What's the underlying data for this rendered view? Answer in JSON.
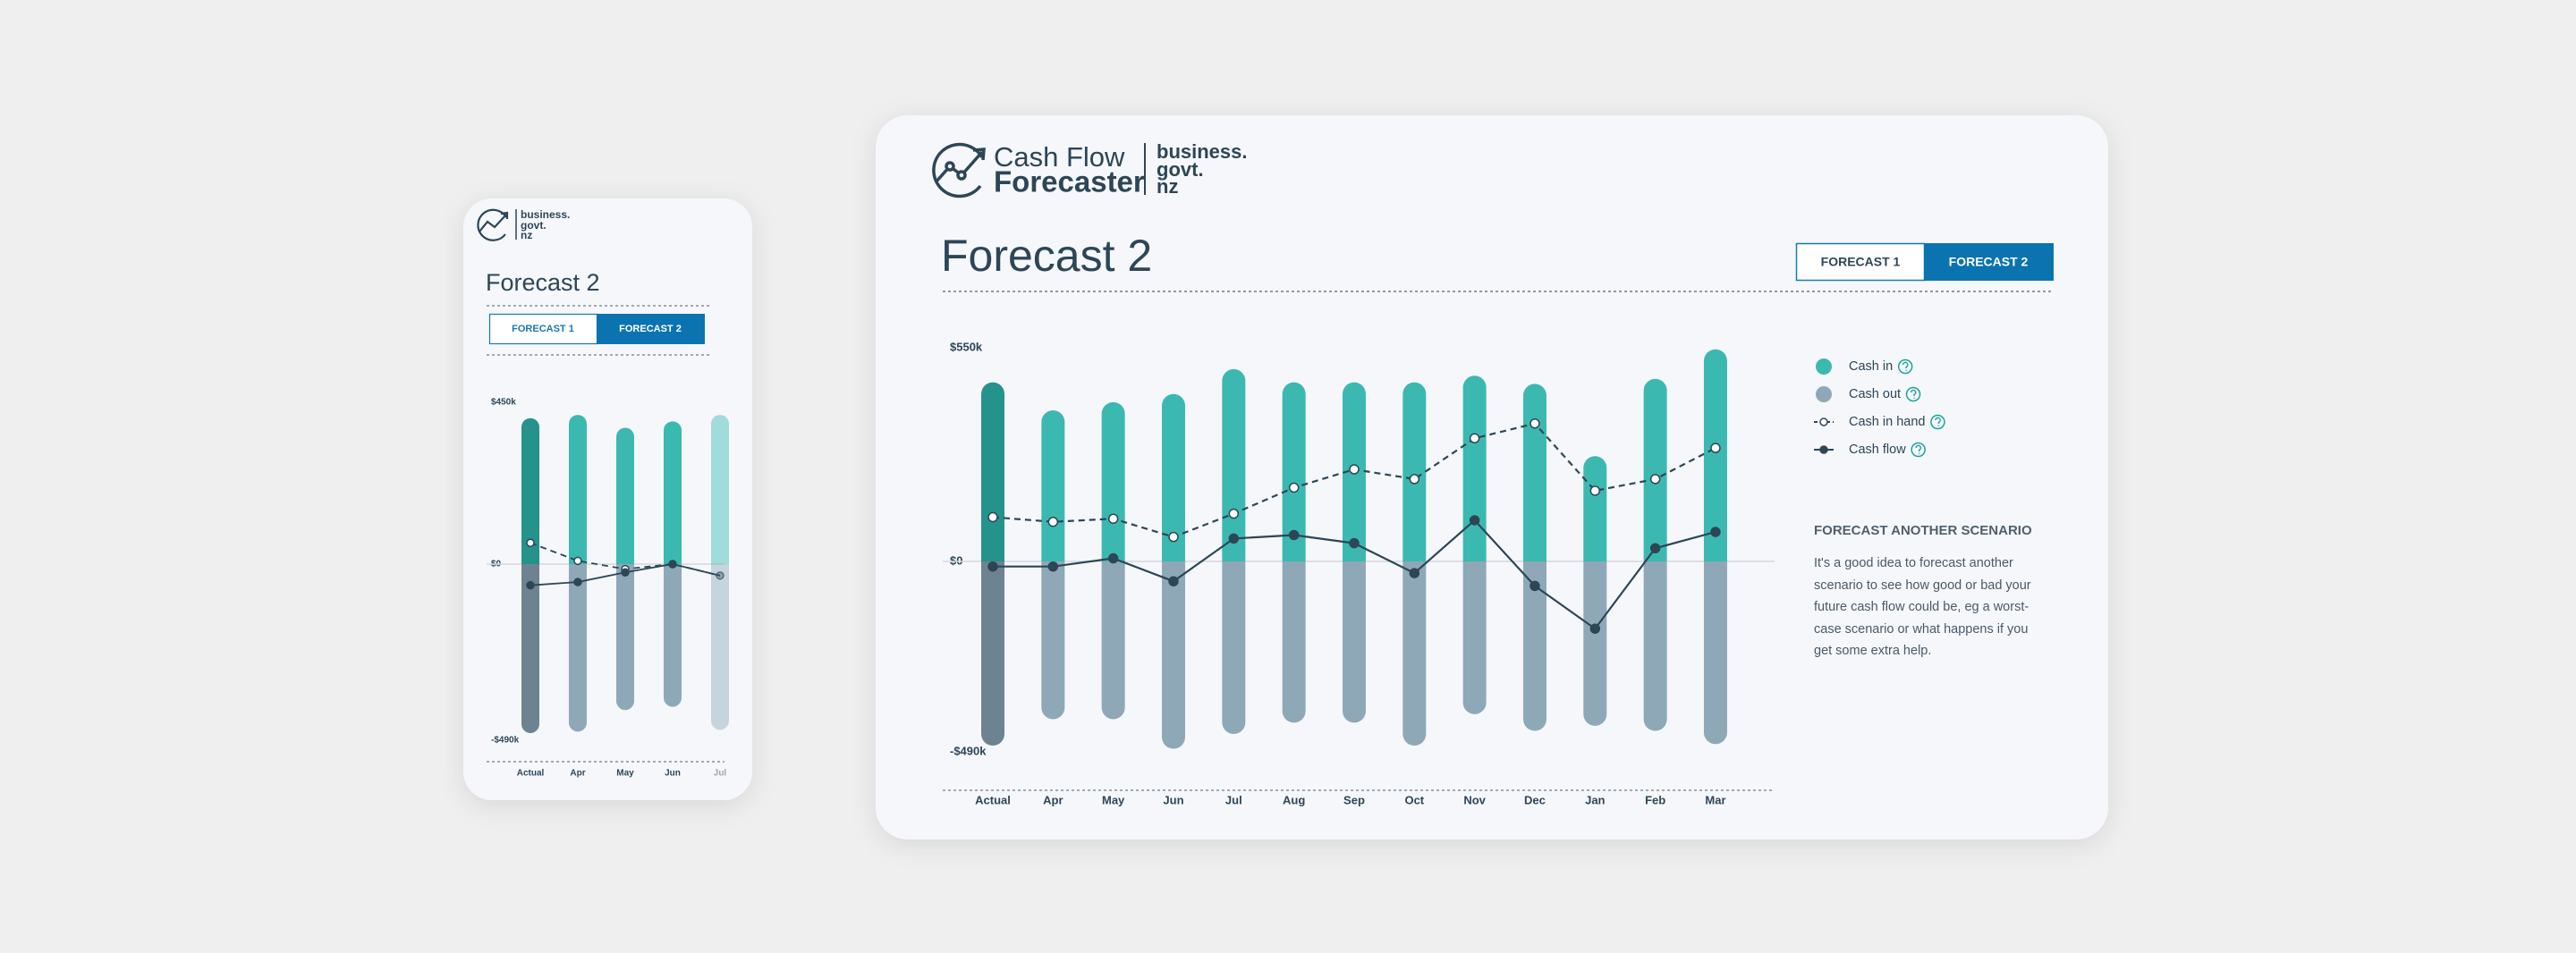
{
  "app": {
    "logo_line1": "Cash Flow",
    "logo_line2": "Forecaster",
    "brand": [
      "business.",
      "govt.",
      "nz"
    ]
  },
  "page": {
    "title": "Forecast 2",
    "tabs": [
      "FORECAST 1",
      "FORECAST 2"
    ],
    "side_heading": "FORECAST ANOTHER SCENARIO",
    "side_text": "It's a good idea to forecast another scenario to see how good or bad your future cash flow could be, eg a worst-case scenario or what happens if you get some extra help."
  },
  "mobile": {
    "brand": [
      "business.",
      "govt.",
      "nz"
    ],
    "title": "Forecast 2",
    "tabs": [
      "FORECAST 1",
      "FORECAST 2"
    ]
  },
  "chart_data": [
    {
      "type": "bar",
      "categories": [
        "Actual",
        "Apr",
        "May",
        "Jun",
        "Jul",
        "Aug",
        "Sep",
        "Oct",
        "Nov",
        "Dec",
        "Jan",
        "Feb",
        "Mar"
      ],
      "ylim": [
        -490,
        550
      ],
      "yticks": [
        {
          "value": 550,
          "label": "$550k"
        },
        {
          "value": 0,
          "label": "$0"
        },
        {
          "value": -490,
          "label": "-$490k"
        }
      ],
      "series": [
        {
          "name": "Cash in",
          "type": "bar",
          "color": "#3bb9b1",
          "values": [
            461,
            389,
            410,
            431,
            495,
            461,
            461,
            461,
            478,
            457,
            271,
            470,
            546
          ]
        },
        {
          "name": "Cash out",
          "type": "bar",
          "color": "#8fa8b8",
          "values": [
            -474,
            -406,
            -406,
            -482,
            -444,
            -415,
            -415,
            -474,
            -393,
            -436,
            -423,
            -436,
            -470
          ]
        },
        {
          "name": "Cash in hand",
          "type": "line",
          "dashed": true,
          "color": "#2d4656",
          "values": [
            114,
            102,
            110,
            63,
            123,
            190,
            237,
            212,
            317,
            355,
            182,
            212,
            292
          ]
        },
        {
          "name": "Cash flow",
          "type": "line",
          "dashed": false,
          "color": "#2d4656",
          "values": [
            -13,
            -13,
            8,
            -51,
            59,
            68,
            47,
            -30,
            106,
            -63,
            -173,
            34,
            76
          ]
        }
      ]
    },
    {
      "type": "bar",
      "categories": [
        "Actual",
        "Apr",
        "May",
        "Jun",
        "Jul"
      ],
      "ylim": [
        -490,
        450
      ],
      "yticks": [
        {
          "value": 450,
          "label": "$450k"
        },
        {
          "value": 0,
          "label": "$0"
        },
        {
          "value": -490,
          "label": "-$490k"
        }
      ],
      "series": [
        {
          "type": "bar",
          "color": "#3bb9b1",
          "values": [
            406,
            415,
            379,
            397,
            415
          ]
        },
        {
          "type": "bar",
          "color": "#8fa8b8",
          "values": [
            -470,
            -466,
            -406,
            -397,
            -461
          ]
        },
        {
          "type": "line",
          "dashed": true,
          "color": "#2d4656",
          "values": [
            59,
            9,
            -14,
            0,
            -32
          ]
        },
        {
          "type": "line",
          "dashed": false,
          "color": "#2d4656",
          "values": [
            -59,
            -50,
            -23,
            0,
            -32
          ]
        }
      ]
    }
  ]
}
